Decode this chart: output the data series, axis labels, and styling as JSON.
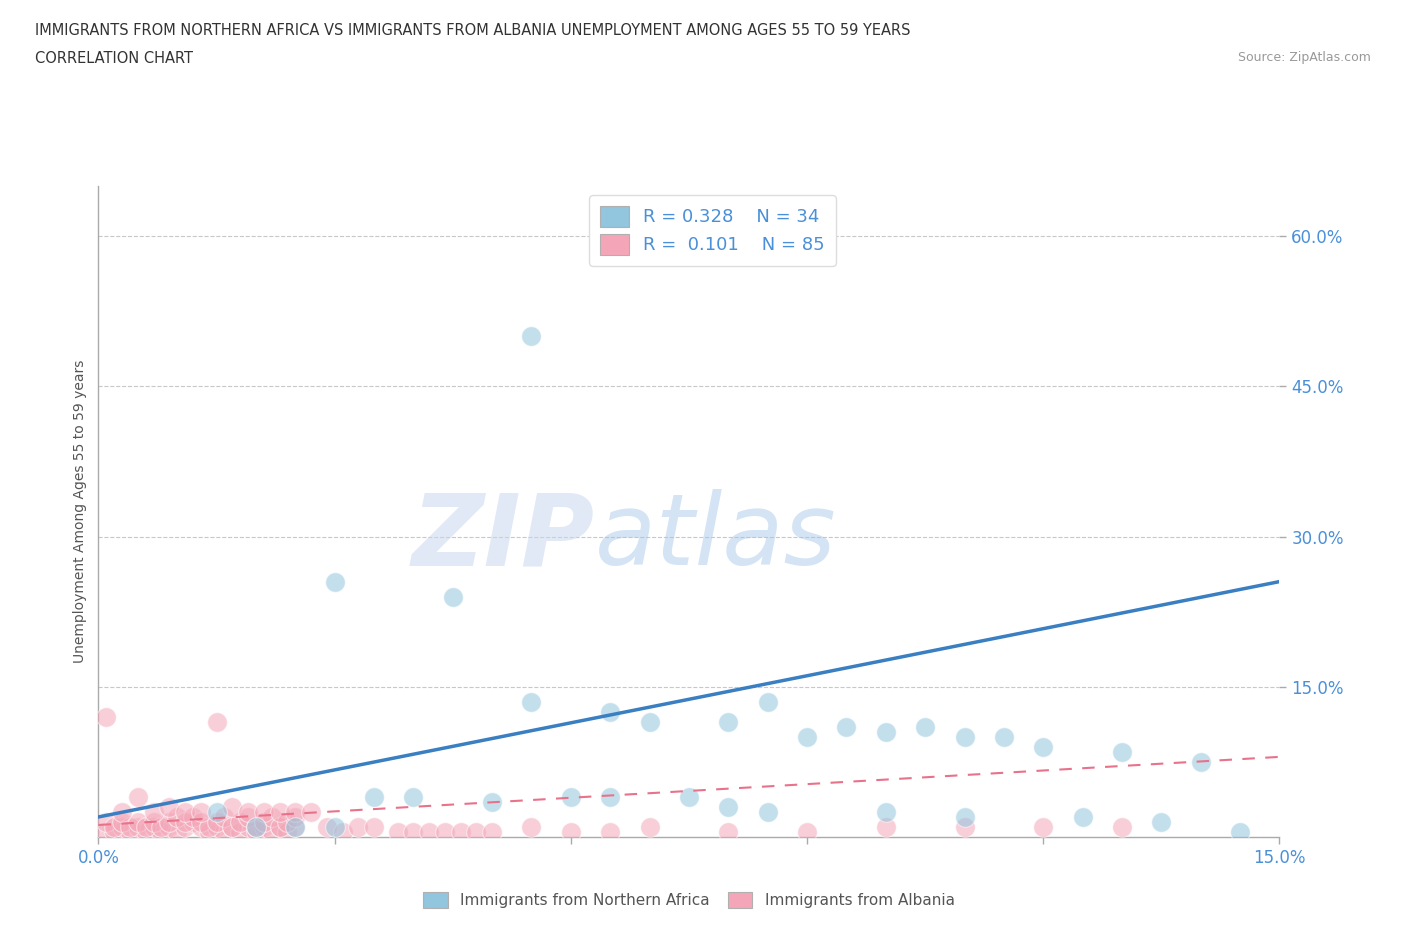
{
  "title_line1": "IMMIGRANTS FROM NORTHERN AFRICA VS IMMIGRANTS FROM ALBANIA UNEMPLOYMENT AMONG AGES 55 TO 59 YEARS",
  "title_line2": "CORRELATION CHART",
  "source_text": "Source: ZipAtlas.com",
  "ylabel": "Unemployment Among Ages 55 to 59 years",
  "xlim": [
    0.0,
    0.15
  ],
  "ylim": [
    0.0,
    0.65
  ],
  "ytick_labels": [
    "15.0%",
    "30.0%",
    "45.0%",
    "60.0%"
  ],
  "ytick_positions": [
    0.15,
    0.3,
    0.45,
    0.6
  ],
  "blue_color": "#92c5de",
  "pink_color": "#f4a6b8",
  "blue_line_color": "#3a7fc1",
  "pink_line_color": "#e8728a",
  "legend_R_blue": "0.328",
  "legend_N_blue": "34",
  "legend_R_pink": "0.101",
  "legend_N_pink": "85",
  "watermark_zip": "ZIP",
  "watermark_atlas": "atlas",
  "blue_scatter_x": [
    0.055,
    0.03,
    0.045,
    0.055,
    0.065,
    0.07,
    0.08,
    0.085,
    0.09,
    0.095,
    0.1,
    0.105,
    0.11,
    0.115,
    0.12,
    0.13,
    0.14,
    0.015,
    0.02,
    0.025,
    0.03,
    0.035,
    0.04,
    0.05,
    0.06,
    0.065,
    0.075,
    0.08,
    0.085,
    0.1,
    0.11,
    0.125,
    0.135,
    0.145
  ],
  "blue_scatter_y": [
    0.5,
    0.255,
    0.24,
    0.135,
    0.125,
    0.115,
    0.115,
    0.135,
    0.1,
    0.11,
    0.105,
    0.11,
    0.1,
    0.1,
    0.09,
    0.085,
    0.075,
    0.025,
    0.01,
    0.01,
    0.01,
    0.04,
    0.04,
    0.035,
    0.04,
    0.04,
    0.04,
    0.03,
    0.025,
    0.025,
    0.02,
    0.02,
    0.015,
    0.005
  ],
  "pink_scatter_x": [
    0.001,
    0.002,
    0.003,
    0.004,
    0.005,
    0.006,
    0.007,
    0.008,
    0.009,
    0.01,
    0.011,
    0.012,
    0.013,
    0.014,
    0.015,
    0.016,
    0.017,
    0.018,
    0.019,
    0.02,
    0.021,
    0.022,
    0.023,
    0.024,
    0.025,
    0.001,
    0.002,
    0.003,
    0.004,
    0.005,
    0.006,
    0.007,
    0.008,
    0.009,
    0.01,
    0.011,
    0.012,
    0.013,
    0.014,
    0.015,
    0.016,
    0.017,
    0.018,
    0.019,
    0.02,
    0.021,
    0.022,
    0.023,
    0.024,
    0.025,
    0.001,
    0.003,
    0.005,
    0.007,
    0.009,
    0.011,
    0.013,
    0.015,
    0.017,
    0.019,
    0.021,
    0.023,
    0.025,
    0.027,
    0.029,
    0.031,
    0.033,
    0.035,
    0.038,
    0.04,
    0.042,
    0.044,
    0.046,
    0.048,
    0.05,
    0.055,
    0.06,
    0.065,
    0.07,
    0.08,
    0.09,
    0.1,
    0.11,
    0.12,
    0.13
  ],
  "pink_scatter_y": [
    0.005,
    0.005,
    0.01,
    0.005,
    0.01,
    0.005,
    0.01,
    0.005,
    0.01,
    0.005,
    0.01,
    0.015,
    0.01,
    0.005,
    0.01,
    0.005,
    0.01,
    0.005,
    0.01,
    0.005,
    0.01,
    0.005,
    0.01,
    0.005,
    0.01,
    0.015,
    0.01,
    0.015,
    0.01,
    0.015,
    0.01,
    0.015,
    0.01,
    0.015,
    0.02,
    0.015,
    0.02,
    0.015,
    0.01,
    0.015,
    0.02,
    0.01,
    0.015,
    0.02,
    0.01,
    0.015,
    0.02,
    0.01,
    0.015,
    0.02,
    0.12,
    0.025,
    0.04,
    0.025,
    0.03,
    0.025,
    0.025,
    0.115,
    0.03,
    0.025,
    0.025,
    0.025,
    0.025,
    0.025,
    0.01,
    0.005,
    0.01,
    0.01,
    0.005,
    0.005,
    0.005,
    0.005,
    0.005,
    0.005,
    0.005,
    0.01,
    0.005,
    0.005,
    0.01,
    0.005,
    0.005,
    0.01,
    0.01,
    0.01,
    0.01
  ]
}
